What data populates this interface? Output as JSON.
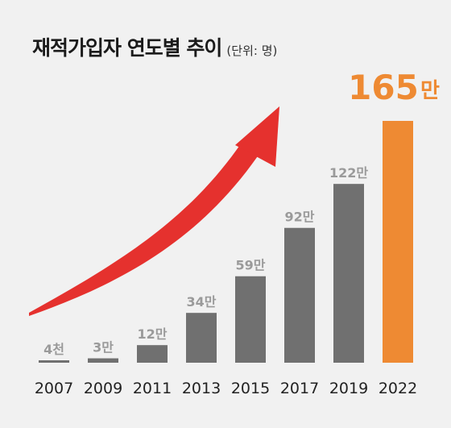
{
  "title": "재적가입자 연도별 추이",
  "unit": "(단위: 명)",
  "colors": {
    "bar": "#707070",
    "highlight": "#ee8a33",
    "arrow": "#e5312e",
    "label": "#9a9a9a",
    "axis_text": "#222222"
  },
  "chart_data": {
    "type": "bar",
    "categories": [
      "2007",
      "2009",
      "2011",
      "2013",
      "2015",
      "2017",
      "2019",
      "2022"
    ],
    "values": [
      0.4,
      3,
      12,
      34,
      59,
      92,
      122,
      165
    ],
    "value_unit": "만",
    "data_labels": [
      "4천",
      "3만",
      "12만",
      "34만",
      "59만",
      "92만",
      "122만",
      "165"
    ],
    "highlight_index": 7,
    "highlight_suffix": "만",
    "ylim": [
      0,
      165
    ],
    "grid": false,
    "legend": "none"
  }
}
